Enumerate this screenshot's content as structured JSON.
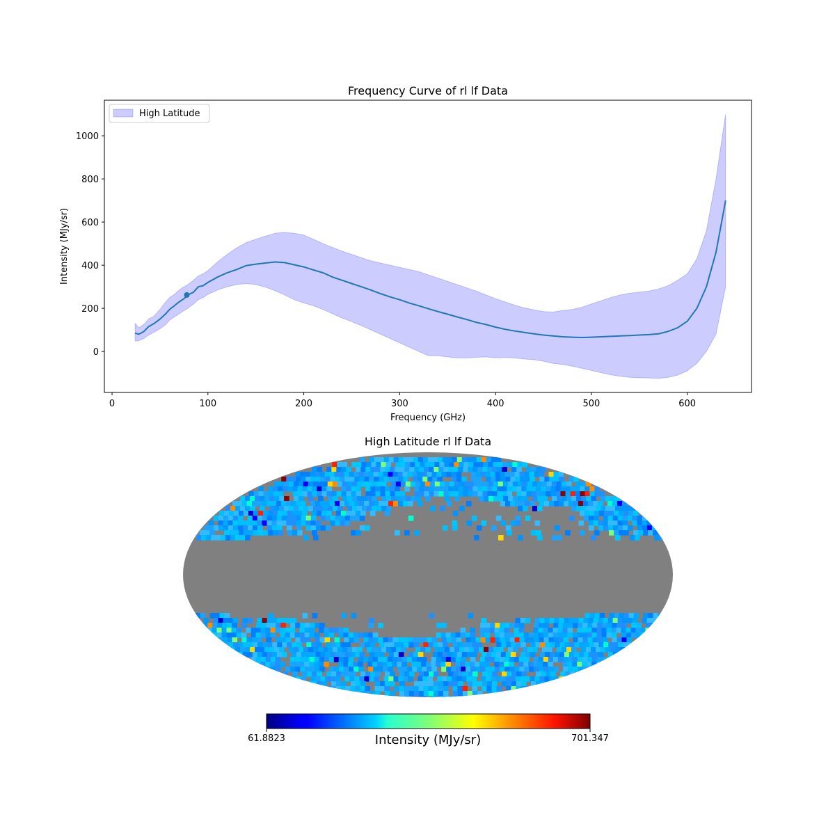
{
  "chart_data": [
    {
      "type": "line",
      "title": "Frequency Curve of rl lf Data",
      "xlabel": "Frequency (GHz)",
      "ylabel": "Intensity (MJy/sr)",
      "xlim": [
        -8,
        667
      ],
      "ylim": [
        -190,
        1165
      ],
      "xticks": [
        0,
        100,
        200,
        300,
        400,
        500,
        600
      ],
      "yticks": [
        0,
        200,
        400,
        600,
        800,
        1000
      ],
      "grid": false,
      "legend": {
        "placement": "top-left",
        "entries": [
          "High Latitude"
        ]
      },
      "colors": {
        "line": "#1f77b4",
        "band": "#0000ff"
      },
      "series": [
        {
          "name": "",
          "x": [
            24,
            28,
            33,
            38,
            44,
            50,
            56,
            60,
            65,
            70,
            75,
            79,
            85,
            90,
            95,
            100,
            110,
            120,
            130,
            140,
            150,
            160,
            170,
            180,
            190,
            200,
            210,
            220,
            230,
            240,
            250,
            260,
            270,
            280,
            290,
            300,
            310,
            320,
            330,
            340,
            350,
            360,
            370,
            380,
            390,
            400,
            410,
            420,
            430,
            440,
            450,
            460,
            470,
            480,
            490,
            500,
            510,
            520,
            530,
            540,
            550,
            560,
            570,
            580,
            590,
            600,
            610,
            620,
            630,
            640
          ],
          "mean": [
            85,
            80,
            92,
            115,
            130,
            150,
            175,
            195,
            212,
            230,
            245,
            262,
            275,
            300,
            305,
            320,
            345,
            365,
            380,
            398,
            405,
            410,
            415,
            412,
            402,
            392,
            378,
            365,
            345,
            330,
            315,
            300,
            285,
            268,
            253,
            240,
            225,
            212,
            198,
            185,
            173,
            160,
            148,
            135,
            125,
            113,
            103,
            95,
            88,
            82,
            76,
            72,
            68,
            66,
            65,
            66,
            68,
            70,
            72,
            74,
            76,
            78,
            82,
            93,
            110,
            140,
            200,
            300,
            460,
            700
          ],
          "lower": [
            48,
            50,
            60,
            75,
            90,
            105,
            125,
            145,
            160,
            175,
            190,
            200,
            220,
            240,
            250,
            265,
            285,
            300,
            310,
            315,
            310,
            298,
            282,
            262,
            240,
            225,
            212,
            195,
            175,
            155,
            138,
            120,
            100,
            80,
            60,
            40,
            20,
            0,
            -20,
            -20,
            -25,
            -30,
            -30,
            -27,
            -25,
            -30,
            -28,
            -30,
            -35,
            -38,
            -45,
            -55,
            -60,
            -68,
            -78,
            -88,
            -98,
            -108,
            -115,
            -120,
            -122,
            -123,
            -125,
            -120,
            -110,
            -90,
            -55,
            0,
            80,
            300
          ],
          "upper": [
            130,
            110,
            125,
            150,
            165,
            195,
            230,
            250,
            265,
            285,
            300,
            310,
            330,
            350,
            360,
            375,
            415,
            450,
            480,
            505,
            520,
            535,
            548,
            552,
            548,
            540,
            520,
            500,
            482,
            465,
            450,
            435,
            420,
            410,
            400,
            390,
            380,
            370,
            355,
            340,
            325,
            310,
            295,
            280,
            262,
            245,
            230,
            215,
            202,
            193,
            185,
            183,
            190,
            195,
            205,
            220,
            235,
            250,
            262,
            270,
            275,
            280,
            290,
            305,
            330,
            360,
            430,
            560,
            800,
            1100
          ]
        }
      ],
      "marker": {
        "x": 78,
        "y": 262
      }
    },
    {
      "type": "heatmap",
      "title": "High Latitude rl lf Data",
      "projection": "mollweide",
      "colormap": "jet",
      "masked_color": "#808080",
      "colorbar": {
        "label": "Intensity (MJy/sr)",
        "min_label": "61.8823",
        "max_label": "701.347",
        "min": 61.8823,
        "max": 701.347
      }
    }
  ]
}
